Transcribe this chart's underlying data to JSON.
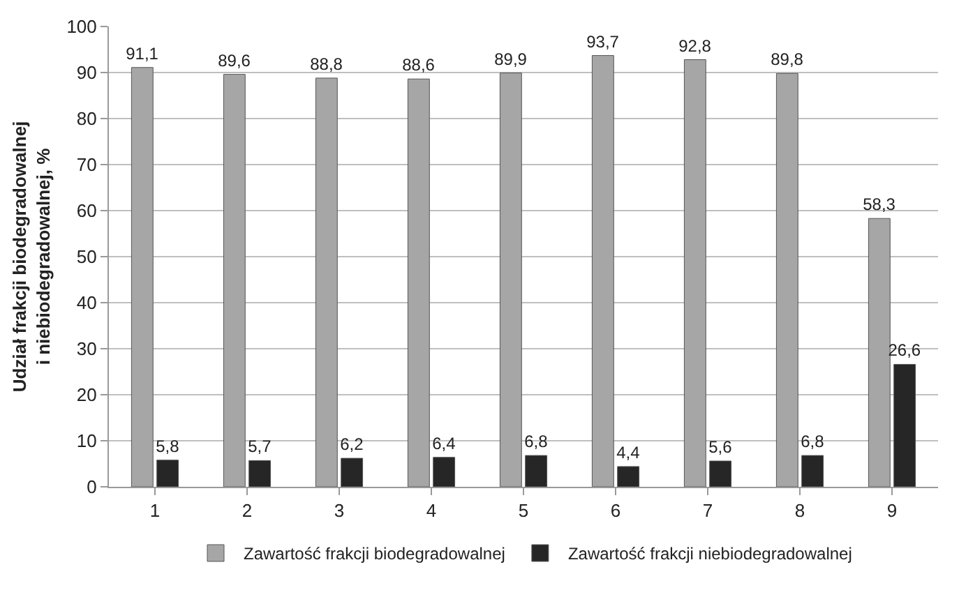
{
  "chart_data": {
    "type": "bar",
    "ylabel": "Udział frakcji biodegradowalnej i niebiodegradowalnej, %",
    "categories": [
      "1",
      "2",
      "3",
      "4",
      "5",
      "6",
      "7",
      "8",
      "9"
    ],
    "series": [
      {
        "name": "Zawartość frakcji biodegradowalnej",
        "color": "#a6a6a6",
        "values": [
          91.1,
          89.6,
          88.8,
          88.6,
          89.9,
          93.7,
          92.8,
          89.8,
          58.3
        ],
        "value_labels": [
          "91,1",
          "89,6",
          "88,8",
          "88,6",
          "89,9",
          "93,7",
          "92,8",
          "89,8",
          "58,3"
        ]
      },
      {
        "name": "Zawartość frakcji niebiodegradowalnej",
        "color": "#262626",
        "values": [
          5.8,
          5.7,
          6.2,
          6.4,
          6.8,
          4.4,
          5.6,
          6.8,
          26.6
        ],
        "value_labels": [
          "5,8",
          "5,7",
          "6,2",
          "6,4",
          "6,8",
          "4,4",
          "5,6",
          "6,8",
          "26,6"
        ]
      }
    ],
    "ylim": [
      0,
      100
    ],
    "yticks": [
      0,
      10,
      20,
      30,
      40,
      50,
      60,
      70,
      80,
      90,
      100
    ],
    "grid": "y",
    "legend": "bottom"
  }
}
